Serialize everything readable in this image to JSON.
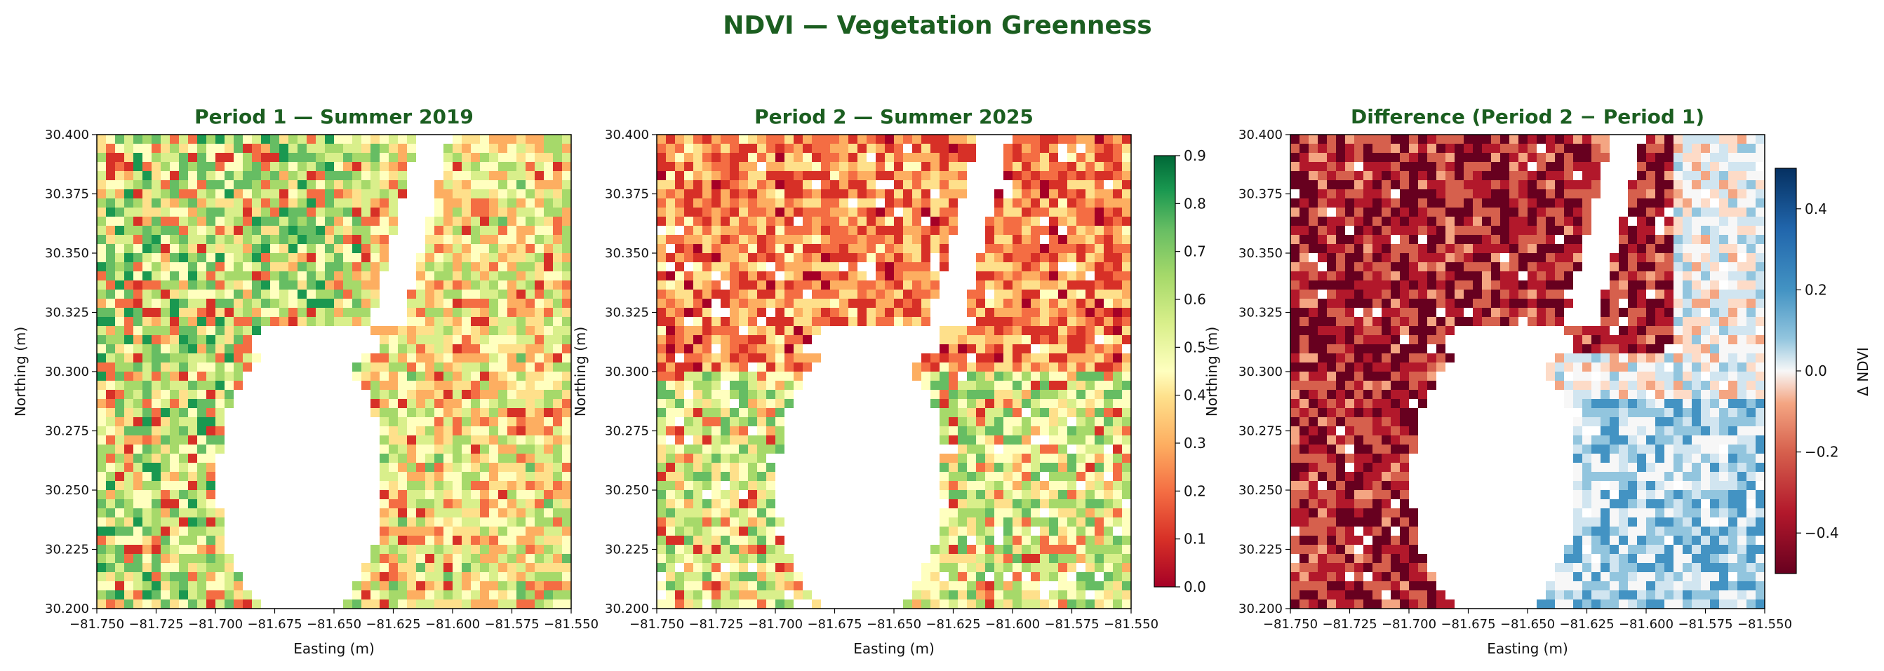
{
  "figure": {
    "title": "NDVI — Vegetation Greenness",
    "title_color": "#1b5e20"
  },
  "chart_data": [
    {
      "type": "heatmap",
      "title": "Period 1 — Summer 2019",
      "xlabel": "Easting (m)",
      "ylabel": "Northing (m)",
      "xlim": [
        -81.75,
        -81.55
      ],
      "ylim": [
        30.2,
        30.4
      ],
      "xticks": [
        "−81.750",
        "−81.725",
        "−81.700",
        "−81.675",
        "−81.650",
        "−81.625",
        "−81.600",
        "−81.575",
        "−81.550"
      ],
      "yticks": [
        "30.200",
        "30.225",
        "30.250",
        "30.275",
        "30.300",
        "30.325",
        "30.350",
        "30.375",
        "30.400"
      ],
      "colormap": "RdYlGn",
      "mean_value": 0.55
    },
    {
      "type": "heatmap",
      "title": "Period 2 — Summer 2025",
      "xlabel": "Easting (m)",
      "ylabel": "Northing (m)",
      "xlim": [
        -81.75,
        -81.55
      ],
      "ylim": [
        30.2,
        30.4
      ],
      "xticks": [
        "−81.750",
        "−81.725",
        "−81.700",
        "−81.675",
        "−81.650",
        "−81.625",
        "−81.600",
        "−81.575",
        "−81.550"
      ],
      "yticks": [
        "30.200",
        "30.225",
        "30.250",
        "30.275",
        "30.300",
        "30.325",
        "30.350",
        "30.375",
        "30.400"
      ],
      "colormap": "RdYlGn",
      "mean_value": 0.4,
      "colorbar": {
        "ticks": [
          "0.0",
          "0.1",
          "0.2",
          "0.3",
          "0.4",
          "0.5",
          "0.6",
          "0.7",
          "0.8",
          "0.9"
        ],
        "range": [
          0,
          0.9
        ],
        "label": ""
      }
    },
    {
      "type": "heatmap",
      "title": "Difference  (Period 2 − Period 1)",
      "xlabel": "Easting (m)",
      "ylabel": "Northing (m)",
      "xlim": [
        -81.75,
        -81.55
      ],
      "ylim": [
        30.2,
        30.4
      ],
      "xticks": [
        "−81.750",
        "−81.725",
        "−81.700",
        "−81.675",
        "−81.650",
        "−81.625",
        "−81.600",
        "−81.575",
        "−81.550"
      ],
      "yticks": [
        "30.200",
        "30.225",
        "30.250",
        "30.275",
        "30.300",
        "30.325",
        "30.350",
        "30.375",
        "30.400"
      ],
      "colormap": "RdBu",
      "colorbar": {
        "ticks": [
          "−0.4",
          "−0.2",
          "0.0",
          "0.2",
          "0.4"
        ],
        "range": [
          -0.5,
          0.5
        ],
        "label": "Δ NDVI"
      }
    }
  ]
}
